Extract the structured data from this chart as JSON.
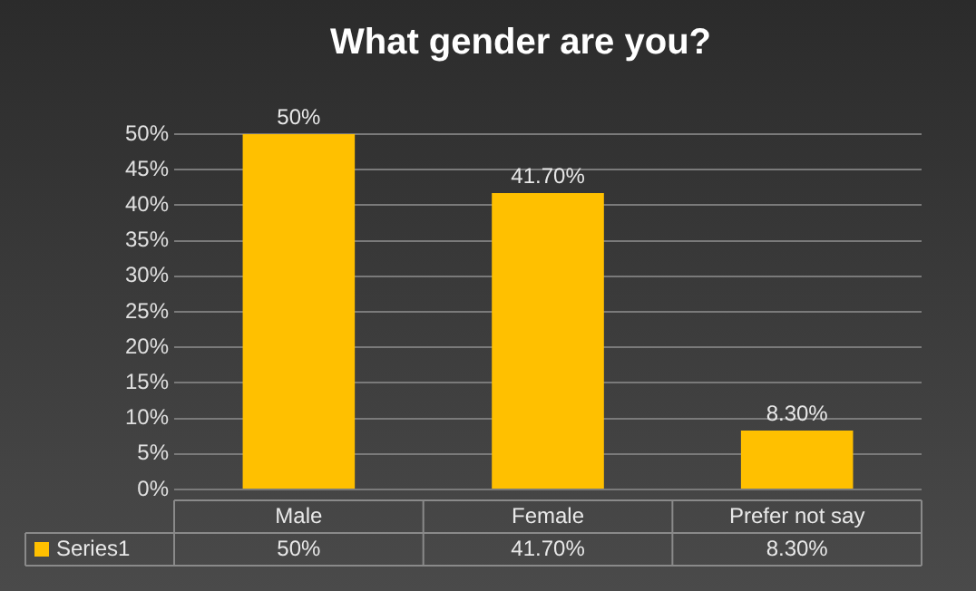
{
  "chart_data": {
    "type": "bar",
    "title": "What gender are you?",
    "categories": [
      "Male",
      "Female",
      "Prefer not say"
    ],
    "series": [
      {
        "name": "Series1",
        "color": "#ffc000",
        "values": [
          50,
          41.7,
          8.3
        ],
        "value_labels": [
          "50%",
          "41.70%",
          "8.30%"
        ]
      }
    ],
    "ylim": [
      0,
      50
    ],
    "yticks": [
      {
        "value": 0,
        "label": "0%"
      },
      {
        "value": 5,
        "label": "5%"
      },
      {
        "value": 10,
        "label": "10%"
      },
      {
        "value": 15,
        "label": "15%"
      },
      {
        "value": 20,
        "label": "20%"
      },
      {
        "value": 25,
        "label": "25%"
      },
      {
        "value": 30,
        "label": "30%"
      },
      {
        "value": 35,
        "label": "35%"
      },
      {
        "value": 40,
        "label": "40%"
      },
      {
        "value": 45,
        "label": "45%"
      },
      {
        "value": 50,
        "label": "50%"
      }
    ],
    "grid": "y",
    "legend": "bottom"
  }
}
